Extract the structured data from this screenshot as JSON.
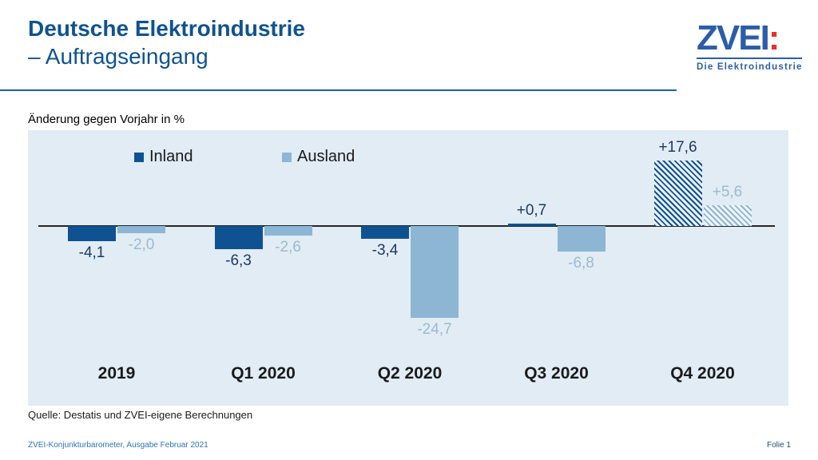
{
  "header": {
    "title_line1": "Deutsche Elektroindustrie",
    "title_line2": "– Auftragseingang"
  },
  "logo": {
    "brand_main": "ZVEI",
    "brand_colon": ":",
    "tagline": "Die Elektroindustrie",
    "brand_color": "#2B5DA9",
    "accent_color": "#E63329"
  },
  "chart_data": {
    "type": "bar",
    "title": "Änderung gegen Vorjahr in %",
    "categories": [
      "2019",
      "Q1 2020",
      "Q2 2020",
      "Q3 2020",
      "Q4 2020"
    ],
    "series": [
      {
        "name": "Inland",
        "color": "#0F5291",
        "label_color": "#1F3864",
        "hatch_bg": "#E9F1F8",
        "values": [
          -4.1,
          -6.3,
          -3.4,
          0.7,
          17.6
        ],
        "labels": [
          "-4,1",
          "-6,3",
          "-3,4",
          "+0,7",
          "+17,6"
        ],
        "hatched": [
          false,
          false,
          false,
          false,
          true
        ]
      },
      {
        "name": "Ausland",
        "color": "#8DB6D5",
        "label_color": "#9FB9CD",
        "hatch_bg": "#F0F6FB",
        "values": [
          -2.0,
          -2.6,
          -24.7,
          -6.8,
          5.6
        ],
        "labels": [
          "-2,0",
          "-2,6",
          "-24,7",
          "-6,8",
          "+5,6"
        ],
        "hatched": [
          false,
          false,
          false,
          false,
          true
        ]
      }
    ],
    "ylim": [
      -27,
      20
    ],
    "plot_bg": "#E1ECF5",
    "axis_color": "#262626",
    "grid": false,
    "legend_position": "top"
  },
  "source_note": "Quelle: Destatis und ZVEI-eigene Berechnungen",
  "footer": {
    "left": "ZVEI-Konjunkturbarometer, Ausgabe Februar 2021",
    "right": "Folie 1"
  }
}
